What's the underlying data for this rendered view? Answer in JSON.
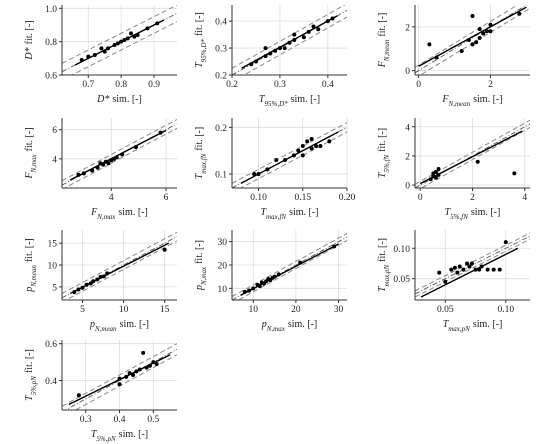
{
  "chart_data": [
    {
      "type": "scatter",
      "xlabel": {
        "base": "D*",
        "suffix": "sim. [-]"
      },
      "ylabel": {
        "base": "D*",
        "suffix": "fit. [-]"
      },
      "xlim": [
        0.62,
        0.97
      ],
      "ylim": [
        0.6,
        1.02
      ],
      "xticks": [
        0.7,
        0.8,
        0.9
      ],
      "yticks": [
        0.6,
        0.8,
        {
          "value": 1,
          "label": "1.0"
        }
      ],
      "grid": true,
      "color": "#000000",
      "band": 0.05,
      "x": [
        0.68,
        0.7,
        0.72,
        0.74,
        0.75,
        0.76,
        0.78,
        0.79,
        0.8,
        0.81,
        0.82,
        0.83,
        0.84,
        0.85,
        0.88,
        0.91
      ],
      "y": [
        0.69,
        0.71,
        0.72,
        0.76,
        0.74,
        0.76,
        0.78,
        0.79,
        0.8,
        0.81,
        0.82,
        0.85,
        0.83,
        0.84,
        0.88,
        0.91
      ],
      "fit_line": {
        "x": [
          0.66,
          0.93
        ],
        "y": [
          0.66,
          0.93
        ]
      }
    },
    {
      "type": "scatter",
      "xlabel": {
        "base": "T",
        "sub": "95%,D*",
        "suffix": "sim. [-]"
      },
      "ylabel": {
        "base": "T",
        "sub": "95%,D*",
        "suffix": "fit. [-]"
      },
      "xlim": [
        0.2,
        0.44
      ],
      "ylim": [
        0.2,
        0.46
      ],
      "xticks": [
        0.2,
        0.3,
        0.4
      ],
      "yticks": [
        0.2,
        0.3,
        0.4
      ],
      "grid": true,
      "color": "#000000",
      "band": 0.025,
      "x": [
        0.24,
        0.25,
        0.27,
        0.27,
        0.28,
        0.29,
        0.3,
        0.31,
        0.32,
        0.33,
        0.33,
        0.35,
        0.36,
        0.37,
        0.38,
        0.4,
        0.41
      ],
      "y": [
        0.24,
        0.25,
        0.27,
        0.3,
        0.28,
        0.29,
        0.3,
        0.3,
        0.32,
        0.33,
        0.35,
        0.34,
        0.36,
        0.38,
        0.37,
        0.4,
        0.41
      ],
      "fit_line": {
        "x": [
          0.22,
          0.42
        ],
        "y": [
          0.225,
          0.42
        ]
      }
    },
    {
      "type": "scatter",
      "xlabel": {
        "base": "F",
        "sub": "N,mean",
        "suffix": "sim. [-]"
      },
      "ylabel": {
        "base": "F",
        "sub": "N,mean",
        "suffix": "fit. [-]"
      },
      "xlim": [
        -0.1,
        3.1
      ],
      "ylim": [
        -0.2,
        3
      ],
      "xticks": [
        0,
        2
      ],
      "yticks": [
        0,
        2
      ],
      "grid": true,
      "color": "#000000",
      "band": 0.25,
      "x": [
        0.3,
        0.5,
        1.2,
        1.4,
        1.5,
        1.5,
        1.6,
        1.7,
        1.8,
        1.9,
        2.0,
        2.0,
        1.7,
        2.8
      ],
      "y": [
        1.2,
        0.6,
        0.9,
        1.4,
        2.5,
        1.2,
        1.3,
        1.5,
        1.7,
        1.8,
        1.8,
        2.1,
        1.9,
        2.6
      ],
      "fit_line": {
        "x": [
          0,
          3
        ],
        "y": [
          0.2,
          2.9
        ]
      }
    },
    {
      "type": "scatter",
      "xlabel": {
        "base": "F",
        "sub": "N,max",
        "suffix": "sim. [-]"
      },
      "ylabel": {
        "base": "F",
        "sub": "N,max",
        "suffix": "fit. [-]"
      },
      "xlim": [
        2.2,
        6.4
      ],
      "ylim": [
        2,
        6.8
      ],
      "xticks": [
        4,
        6
      ],
      "yticks": [
        4,
        6
      ],
      "grid": true,
      "color": "#000000",
      "band": 0.3,
      "x": [
        2.8,
        3.0,
        3.3,
        3.5,
        3.6,
        3.7,
        3.8,
        3.9,
        4.0,
        4.1,
        4.2,
        4.4,
        4.9,
        5.8
      ],
      "y": [
        2.9,
        3.0,
        3.2,
        3.4,
        3.7,
        3.6,
        3.8,
        3.7,
        3.9,
        4.0,
        4.1,
        4.3,
        4.8,
        5.8
      ],
      "fit_line": {
        "x": [
          2.5,
          6.0
        ],
        "y": [
          2.55,
          5.95
        ]
      }
    },
    {
      "type": "scatter",
      "xlabel": {
        "base": "T",
        "sub": "max,fN",
        "suffix": "sim. [-]"
      },
      "ylabel": {
        "base": "T",
        "sub": "max,fN",
        "suffix": "fit. [-]"
      },
      "xlim": [
        0.07,
        0.2
      ],
      "ylim": [
        0.07,
        0.22
      ],
      "xticks": [
        {
          "value": 0.1,
          "label": "0.10"
        },
        0.15,
        {
          "value": 0.2,
          "label": "0.20"
        }
      ],
      "yticks": [
        0.1,
        0.2
      ],
      "grid": true,
      "color": "#000000",
      "band": 0.01,
      "x": [
        0.095,
        0.1,
        0.11,
        0.12,
        0.13,
        0.14,
        0.145,
        0.15,
        0.15,
        0.155,
        0.16,
        0.16,
        0.165,
        0.17,
        0.18
      ],
      "y": [
        0.1,
        0.1,
        0.11,
        0.13,
        0.13,
        0.14,
        0.15,
        0.14,
        0.16,
        0.17,
        0.155,
        0.175,
        0.16,
        0.16,
        0.17
      ],
      "fit_line": {
        "x": [
          0.08,
          0.19
        ],
        "y": [
          0.08,
          0.19
        ]
      }
    },
    {
      "type": "scatter",
      "xlabel": {
        "base": "T",
        "sub": "5%,fN",
        "suffix": "sim. [-]"
      },
      "ylabel": {
        "base": "T",
        "sub": "5%,fN",
        "suffix": "fit. [-]"
      },
      "xlim": [
        -0.2,
        4.2
      ],
      "ylim": [
        -0.2,
        4.6
      ],
      "xticks": [
        0,
        2,
        4
      ],
      "yticks": [
        0,
        2,
        4
      ],
      "grid": true,
      "color": "#000000",
      "band": 0.25,
      "x": [
        0.4,
        0.5,
        0.5,
        0.6,
        0.6,
        0.7,
        0.7,
        2.2,
        3.6
      ],
      "y": [
        0.4,
        0.6,
        0.8,
        0.5,
        0.9,
        1.1,
        0.7,
        1.6,
        0.8
      ],
      "fit_line": {
        "x": [
          0,
          3.9
        ],
        "y": [
          0.1,
          3.7
        ]
      }
    },
    {
      "type": "scatter",
      "xlabel": {
        "base": "p",
        "sub": "N,mean",
        "suffix": "sim. [-]"
      },
      "ylabel": {
        "base": "p",
        "sub": "N,mean",
        "suffix": "fit. [-]"
      },
      "xlim": [
        2.5,
        16.5
      ],
      "ylim": [
        2,
        18
      ],
      "xticks": [
        5,
        10,
        15
      ],
      "yticks": [
        5,
        10,
        15
      ],
      "grid": true,
      "color": "#000000",
      "band": 1,
      "x": [
        4.0,
        4.5,
        5.0,
        5.5,
        6.0,
        6.3,
        6.8,
        7.2,
        7.6,
        8.0,
        15.0
      ],
      "y": [
        3.8,
        4.4,
        4.8,
        5.5,
        5.8,
        6.3,
        6.7,
        7.3,
        7.4,
        8.1,
        13.5
      ],
      "fit_line": {
        "x": [
          3.5,
          15.5
        ],
        "y": [
          3.5,
          15.0
        ]
      }
    },
    {
      "type": "scatter",
      "xlabel": {
        "base": "p",
        "sub": "N,max",
        "suffix": "sim. [-]"
      },
      "ylabel": {
        "base": "p",
        "sub": "N,max",
        "suffix": "fit. [-]"
      },
      "xlim": [
        5,
        32
      ],
      "ylim": [
        5,
        35
      ],
      "xticks": [
        10,
        20,
        30
      ],
      "yticks": [
        10,
        20,
        30
      ],
      "grid": true,
      "color": "#000000",
      "band": 1.5,
      "x": [
        8,
        9,
        10,
        11,
        11.5,
        12,
        12.5,
        13,
        13.5,
        14,
        14.5,
        15,
        16,
        21,
        29
      ],
      "y": [
        8.5,
        9,
        10,
        11.5,
        11,
        12.5,
        12,
        13,
        14,
        13.5,
        14.5,
        15,
        16,
        21,
        28
      ],
      "fit_line": {
        "x": [
          7,
          30
        ],
        "y": [
          7,
          29
        ]
      }
    },
    {
      "type": "scatter",
      "xlabel": {
        "base": "T",
        "sub": "max,pN",
        "suffix": "sim. [-]"
      },
      "ylabel": {
        "base": "T",
        "sub": "max,pN",
        "suffix": "fit. [-]"
      },
      "xlim": [
        0.025,
        0.12
      ],
      "ylim": [
        0.015,
        0.13
      ],
      "xticks": [
        0.05,
        {
          "value": 0.1,
          "label": "0.10"
        }
      ],
      "yticks": [
        0.05,
        {
          "value": 0.1,
          "label": "0.10"
        }
      ],
      "grid": true,
      "color": "#000000",
      "band": 0.005,
      "x": [
        0.045,
        0.05,
        0.055,
        0.058,
        0.06,
        0.062,
        0.065,
        0.068,
        0.07,
        0.072,
        0.075,
        0.078,
        0.08,
        0.085,
        0.09,
        0.095,
        0.1
      ],
      "y": [
        0.06,
        0.045,
        0.065,
        0.068,
        0.06,
        0.07,
        0.065,
        0.075,
        0.07,
        0.075,
        0.065,
        0.065,
        0.07,
        0.065,
        0.065,
        0.065,
        0.11
      ],
      "fit_line": {
        "x": [
          0.03,
          0.11
        ],
        "y": [
          0.02,
          0.1
        ]
      }
    },
    {
      "type": "scatter",
      "xlabel": {
        "base": "T",
        "sub": "5%,pN",
        "suffix": "sim. [-]"
      },
      "ylabel": {
        "base": "T",
        "sub": "5%,pN",
        "suffix": "fit. [-]"
      },
      "xlim": [
        0.23,
        0.57
      ],
      "ylim": [
        0.24,
        0.62
      ],
      "xticks": [
        0.3,
        0.4,
        0.5
      ],
      "yticks": [
        0.4,
        0.6
      ],
      "grid": true,
      "color": "#000000",
      "band": 0.03,
      "x": [
        0.28,
        0.4,
        0.4,
        0.42,
        0.43,
        0.44,
        0.45,
        0.46,
        0.47,
        0.48,
        0.49,
        0.5,
        0.51
      ],
      "y": [
        0.32,
        0.38,
        0.41,
        0.42,
        0.44,
        0.43,
        0.45,
        0.46,
        0.55,
        0.47,
        0.48,
        0.5,
        0.49
      ],
      "fit_line": {
        "x": [
          0.25,
          0.55
        ],
        "y": [
          0.27,
          0.54
        ]
      }
    }
  ]
}
